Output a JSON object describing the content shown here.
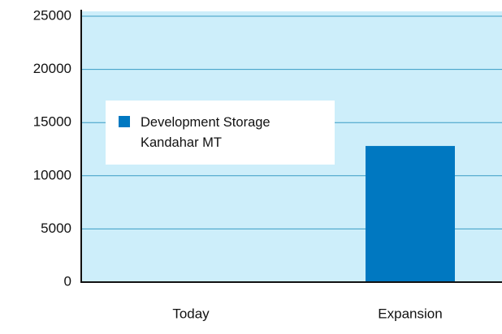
{
  "chart_data": {
    "type": "bar",
    "categories": [
      "Today",
      "Expansion"
    ],
    "series": [
      {
        "name": "Development Storage Kandahar MT",
        "color": "#0078c1",
        "values": [
          0,
          12800
        ]
      }
    ],
    "ylim": [
      0,
      25000
    ],
    "yticks": [
      0,
      5000,
      10000,
      15000,
      20000,
      25000
    ],
    "grid": true
  }
}
